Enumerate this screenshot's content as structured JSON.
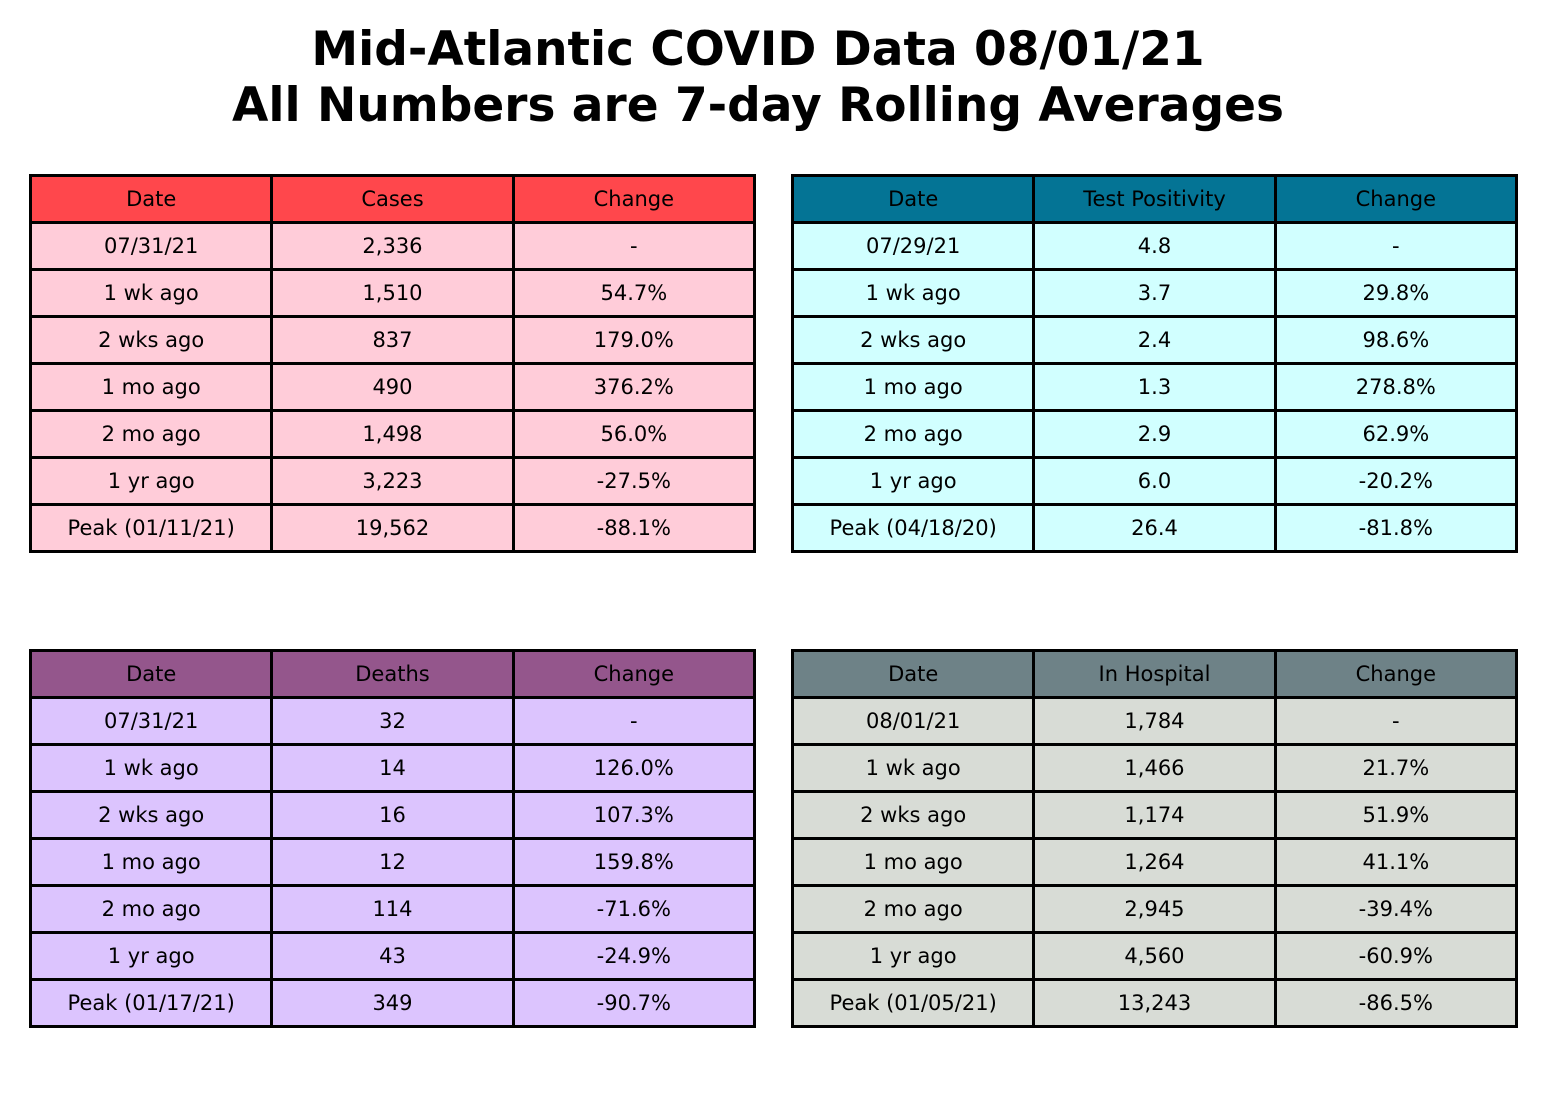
{
  "title": {
    "line1": "Mid-Atlantic COVID Data 08/01/21",
    "line2": "All Numbers are 7-day Rolling Averages"
  },
  "chart_data": [
    {
      "type": "table",
      "id": "cases",
      "header_color": "#ff474c",
      "body_color": "#ffccd9",
      "columns": [
        "Date",
        "Cases",
        "Change"
      ],
      "rows": [
        [
          "07/31/21",
          "2,336",
          "-"
        ],
        [
          "1 wk ago",
          "1,510",
          "54.7%"
        ],
        [
          "2 wks ago",
          "837",
          "179.0%"
        ],
        [
          "1 mo ago",
          "490",
          "376.2%"
        ],
        [
          "2 mo ago",
          "1,498",
          "56.0%"
        ],
        [
          "1 yr ago",
          "3,223",
          "-27.5%"
        ],
        [
          "Peak (01/11/21)",
          "19,562",
          "-88.1%"
        ]
      ]
    },
    {
      "type": "table",
      "id": "positivity",
      "header_color": "#047495",
      "body_color": "#d1ffff",
      "columns": [
        "Date",
        "Test Positivity",
        "Change"
      ],
      "rows": [
        [
          "07/29/21",
          "4.8",
          "-"
        ],
        [
          "1 wk ago",
          "3.7",
          "29.8%"
        ],
        [
          "2 wks ago",
          "2.4",
          "98.6%"
        ],
        [
          "1 mo ago",
          "1.3",
          "278.8%"
        ],
        [
          "2 mo ago",
          "2.9",
          "62.9%"
        ],
        [
          "1 yr ago",
          "6.0",
          "-20.2%"
        ],
        [
          "Peak (04/18/20)",
          "26.4",
          "-81.8%"
        ]
      ]
    },
    {
      "type": "table",
      "id": "deaths",
      "header_color": "#94568c",
      "body_color": "#dcc4fe",
      "columns": [
        "Date",
        "Deaths",
        "Change"
      ],
      "rows": [
        [
          "07/31/21",
          "32",
          "-"
        ],
        [
          "1 wk ago",
          "14",
          "126.0%"
        ],
        [
          "2 wks ago",
          "16",
          "107.3%"
        ],
        [
          "1 mo ago",
          "12",
          "159.8%"
        ],
        [
          "2 mo ago",
          "114",
          "-71.6%"
        ],
        [
          "1 yr ago",
          "43",
          "-24.9%"
        ],
        [
          "Peak (01/17/21)",
          "349",
          "-90.7%"
        ]
      ]
    },
    {
      "type": "table",
      "id": "hospital",
      "header_color": "#6e8287",
      "body_color": "#d8dcd6",
      "columns": [
        "Date",
        "In Hospital",
        "Change"
      ],
      "rows": [
        [
          "08/01/21",
          "1,784",
          "-"
        ],
        [
          "1 wk ago",
          "1,466",
          "21.7%"
        ],
        [
          "2 wks ago",
          "1,174",
          "51.9%"
        ],
        [
          "1 mo ago",
          "1,264",
          "41.1%"
        ],
        [
          "2 mo ago",
          "2,945",
          "-39.4%"
        ],
        [
          "1 yr ago",
          "4,560",
          "-60.9%"
        ],
        [
          "Peak (01/05/21)",
          "13,243",
          "-86.5%"
        ]
      ]
    }
  ]
}
